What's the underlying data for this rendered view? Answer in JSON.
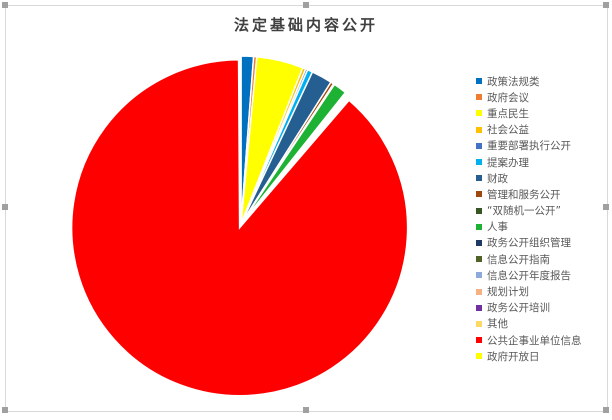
{
  "chart_data": {
    "type": "pie",
    "title": "法定基础内容公开",
    "legend_position": "right",
    "unit": "percent (estimated)",
    "slices": [
      {
        "label": "政策法规类",
        "value": 1.2,
        "color": "#0070c0"
      },
      {
        "label": "政府会议",
        "value": 0.3,
        "color": "#ed7d31"
      },
      {
        "label": "重点民生",
        "value": 4.5,
        "color": "#ffff00"
      },
      {
        "label": "社会公益",
        "value": 0.3,
        "color": "#ffc000"
      },
      {
        "label": "重要部署执行公开",
        "value": 0.2,
        "color": "#4472c4"
      },
      {
        "label": "提案办理",
        "value": 0.5,
        "color": "#00b0f0"
      },
      {
        "label": "财政",
        "value": 2.0,
        "color": "#255e91"
      },
      {
        "label": "管理和服务公开",
        "value": 0.3,
        "color": "#9e480e"
      },
      {
        "label": "“双随机一公开”",
        "value": 0.1,
        "color": "#375623"
      },
      {
        "label": "人事",
        "value": 1.3,
        "color": "#1db233"
      },
      {
        "label": "政务公开组织管理",
        "value": 0.1,
        "color": "#203864"
      },
      {
        "label": "信息公开指南",
        "value": 0.1,
        "color": "#4f6228"
      },
      {
        "label": "信息公开年度报告",
        "value": 0.1,
        "color": "#8eaadb"
      },
      {
        "label": "规划计划",
        "value": 0.1,
        "color": "#f4b183"
      },
      {
        "label": "政务公开培训",
        "value": 0.1,
        "color": "#7030a0"
      },
      {
        "label": "其他",
        "value": 0.1,
        "color": "#ffd966"
      },
      {
        "label": "公共企事业单位信息",
        "value": 88.7,
        "color": "#ff0000"
      },
      {
        "label": "政府开放日",
        "value": 0.1,
        "color": "#ffff00"
      }
    ]
  }
}
